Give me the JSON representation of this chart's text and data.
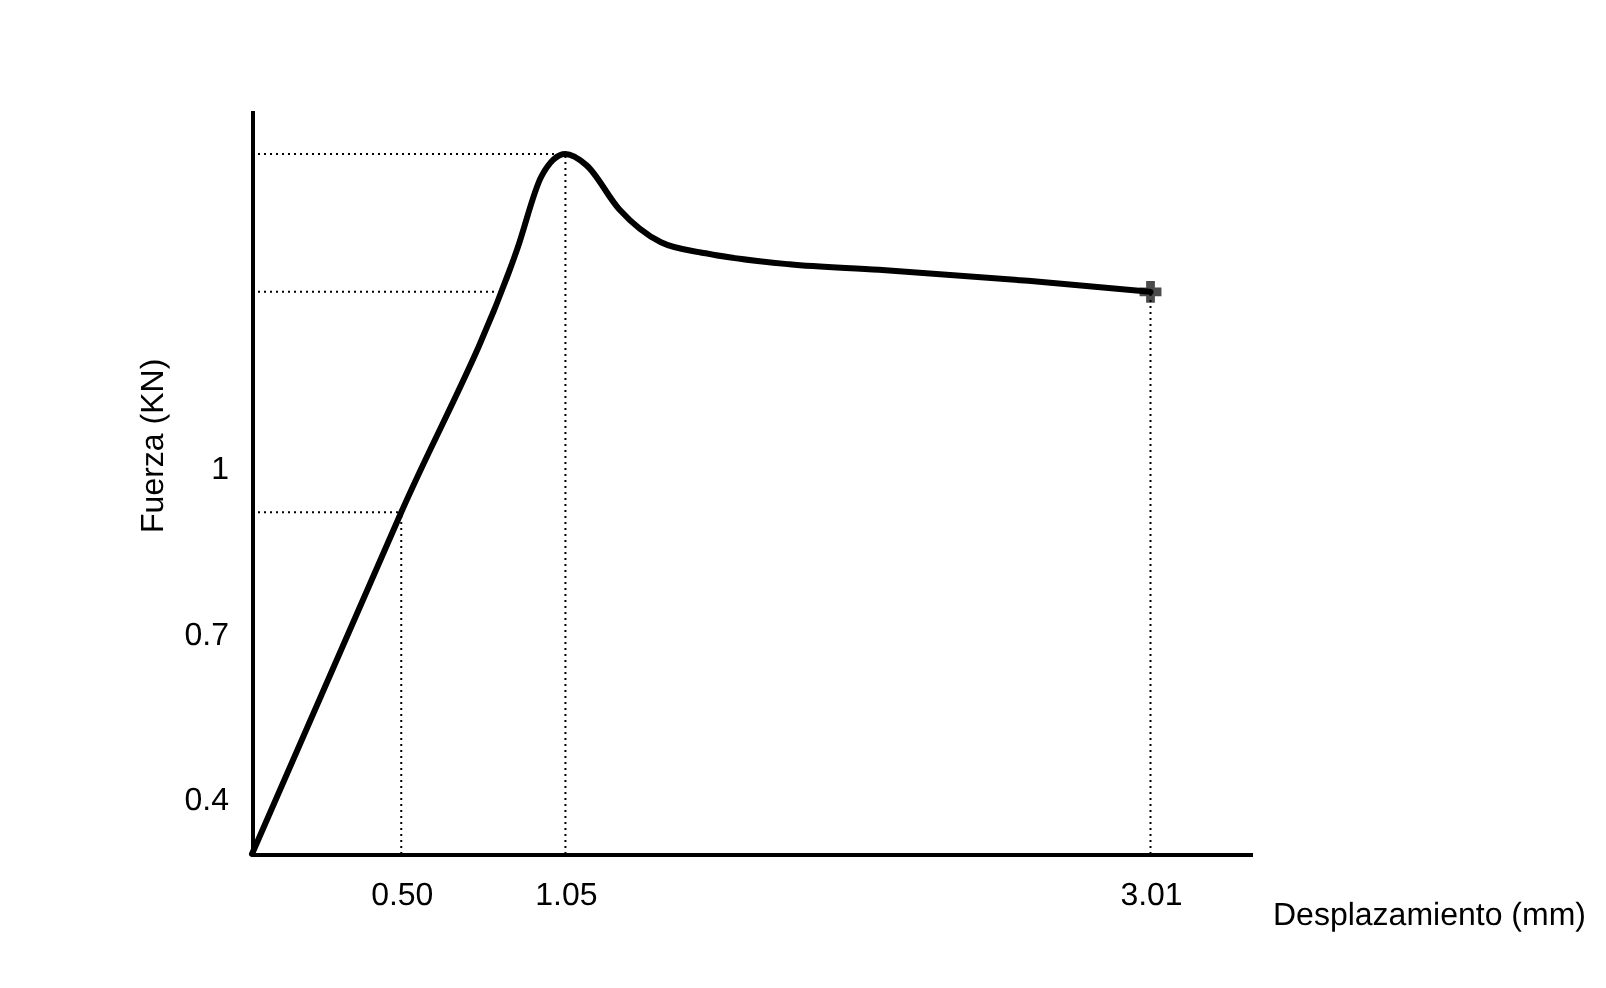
{
  "chart_data": {
    "type": "line",
    "xlabel": "Desplazamiento (mm)",
    "ylabel": "Fuerza (KN)",
    "xlim": [
      0,
      3.35
    ],
    "ylim": [
      0.3,
      1.65
    ],
    "xticks": [
      {
        "value": 0.5,
        "label": "0.50"
      },
      1.05,
      3.01
    ],
    "yticks": [
      0.4,
      0.7,
      1
    ],
    "grid": false,
    "series": [
      {
        "color": "#000000",
        "x": [
          0,
          0.5,
          0.89,
          0.97,
          1.05,
          1.12,
          1.23,
          1.37,
          1.52,
          1.8,
          2.1,
          2.6,
          3.01
        ],
        "values": [
          0.3,
          0.92,
          1.4,
          1.53,
          1.57,
          1.55,
          1.47,
          1.41,
          1.39,
          1.37,
          1.36,
          1.34,
          1.32
        ]
      },
      {
        "type": "scatter",
        "marker": "cross",
        "color": "#000000",
        "x": [
          3.01
        ],
        "values": [
          1.32
        ]
      }
    ],
    "ref_lines": [
      {
        "axis": "x",
        "value": 0.5,
        "line_style": "dotted",
        "color": "#000000"
      },
      {
        "axis": "x",
        "value": 1.05,
        "line_style": "dotted",
        "color": "#000000"
      },
      {
        "axis": "x",
        "value": 3.01,
        "line_style": "dotted",
        "color": "#000000"
      },
      {
        "axis": "y",
        "value": 0.92,
        "line_style": "dotted",
        "color": "#000000"
      },
      {
        "axis": "y",
        "value": 1.32,
        "line_style": "dotted",
        "color": "#000000"
      },
      {
        "axis": "y",
        "value": 1.57,
        "line_style": "dotted",
        "color": "#000000"
      }
    ]
  }
}
